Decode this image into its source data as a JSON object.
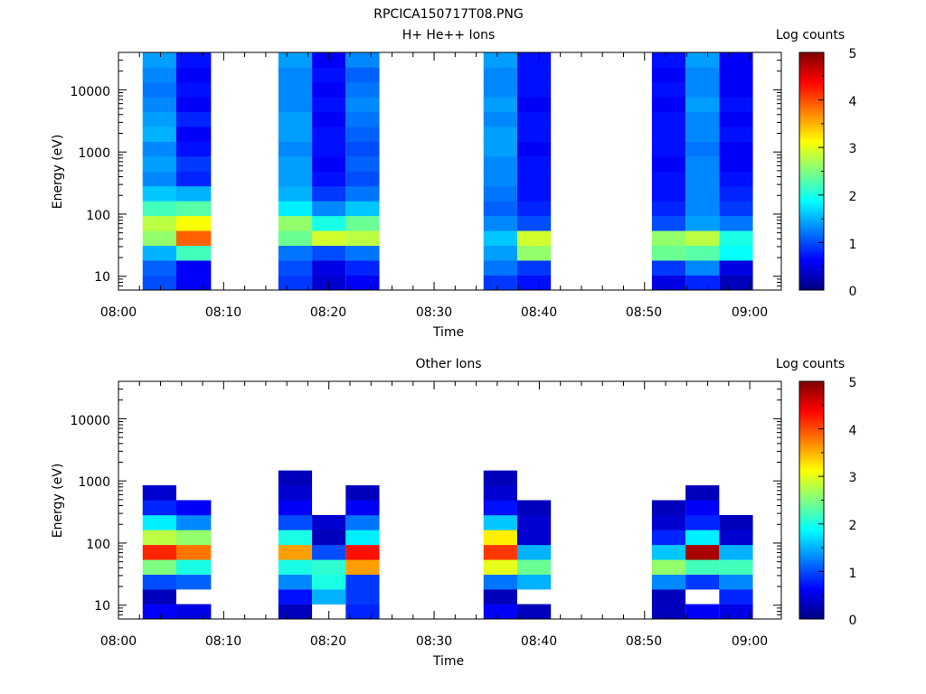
{
  "figure_title": "RPCICA150717T08.PNG",
  "colorbar": {
    "label": "Log counts",
    "ticks": [
      "0",
      "1",
      "2",
      "3",
      "4",
      "5"
    ],
    "stops": [
      "#00007f",
      "#0000ff",
      "#007fff",
      "#00ffff",
      "#7fff7f",
      "#ffff00",
      "#ff7f00",
      "#ff0000",
      "#7f0000"
    ]
  },
  "chart_data": [
    {
      "type": "heatmap",
      "title": "H+ He++ Ions",
      "xlabel": "Time",
      "ylabel": "Energy (eV)",
      "x_tick_labels": [
        "08:00",
        "08:10",
        "08:20",
        "08:30",
        "08:40",
        "08:50",
        "09:00"
      ],
      "y_tick_labels": [
        "10",
        "100",
        "1000",
        "10000"
      ],
      "y_scale": "log",
      "ylim": [
        6,
        40000
      ],
      "xlim_minutes_after_0800": [
        0,
        63
      ],
      "z_label": "Log counts",
      "z_range": [
        0,
        5
      ],
      "time_blocks_minutes": [
        [
          2.3,
          5.5
        ],
        [
          5.5,
          8.8
        ],
        [
          15.2,
          18.4
        ],
        [
          18.4,
          21.6
        ],
        [
          21.6,
          24.8
        ],
        [
          34.7,
          37.9
        ],
        [
          37.9,
          41.1
        ],
        [
          50.7,
          53.9
        ],
        [
          53.9,
          57.1
        ],
        [
          57.1,
          60.3
        ]
      ],
      "spectra": [
        [
          1.0,
          1.1,
          1.5,
          2.6,
          2.8,
          2.2,
          1.6,
          1.3,
          1.4,
          1.3,
          1.5,
          1.4,
          1.3,
          1.2,
          1.3,
          1.4
        ],
        [
          0.6,
          0.6,
          2.2,
          3.9,
          3.1,
          2.3,
          1.5,
          0.8,
          0.9,
          0.7,
          0.6,
          0.8,
          0.6,
          0.7,
          0.6,
          0.7
        ],
        [
          0.9,
          1.0,
          1.2,
          2.4,
          2.6,
          1.8,
          1.5,
          1.4,
          1.4,
          1.3,
          1.4,
          1.4,
          1.3,
          1.3,
          1.3,
          1.4
        ],
        [
          0.4,
          0.5,
          1.0,
          2.9,
          2.0,
          1.3,
          0.9,
          0.7,
          0.6,
          0.7,
          0.7,
          0.6,
          0.7,
          0.6,
          0.7,
          0.6
        ],
        [
          0.6,
          0.8,
          1.2,
          2.8,
          2.4,
          1.6,
          1.2,
          1.0,
          1.1,
          1.0,
          1.1,
          1.2,
          1.3,
          1.2,
          1.1,
          1.3
        ],
        [
          0.9,
          1.2,
          1.4,
          1.6,
          1.3,
          1.1,
          1.2,
          1.3,
          1.3,
          1.4,
          1.4,
          1.3,
          1.4,
          1.3,
          1.3,
          1.4
        ],
        [
          0.7,
          0.9,
          2.6,
          2.9,
          1.0,
          0.8,
          0.7,
          0.7,
          0.7,
          0.6,
          0.7,
          0.7,
          0.6,
          0.7,
          0.7,
          0.7
        ],
        [
          0.5,
          0.9,
          2.4,
          2.6,
          1.0,
          0.8,
          0.7,
          0.7,
          0.6,
          0.7,
          0.7,
          0.7,
          0.6,
          0.7,
          0.6,
          0.7
        ],
        [
          0.8,
          1.3,
          2.3,
          2.8,
          1.4,
          1.3,
          1.3,
          1.3,
          1.3,
          1.2,
          1.3,
          1.3,
          1.4,
          1.3,
          1.3,
          1.4
        ],
        [
          0.3,
          0.5,
          1.9,
          2.0,
          1.2,
          0.9,
          0.8,
          0.7,
          0.6,
          0.6,
          0.7,
          0.6,
          0.7,
          0.6,
          0.6,
          0.6
        ]
      ]
    },
    {
      "type": "heatmap",
      "title": "Other Ions",
      "xlabel": "Time",
      "ylabel": "Energy (eV)",
      "x_tick_labels": [
        "08:00",
        "08:10",
        "08:20",
        "08:30",
        "08:40",
        "08:50",
        "09:00"
      ],
      "y_tick_labels": [
        "10",
        "100",
        "1000",
        "10000"
      ],
      "y_scale": "log",
      "ylim": [
        6,
        40000
      ],
      "xlim_minutes_after_0800": [
        0,
        63
      ],
      "z_label": "Log counts",
      "z_range": [
        0,
        5
      ],
      "time_blocks_minutes": [
        [
          2.3,
          5.5
        ],
        [
          5.5,
          8.8
        ],
        [
          15.2,
          18.4
        ],
        [
          18.4,
          21.6
        ],
        [
          21.6,
          24.8
        ],
        [
          34.7,
          37.9
        ],
        [
          37.9,
          41.1
        ],
        [
          50.7,
          53.9
        ],
        [
          53.9,
          57.1
        ],
        [
          57.1,
          60.3
        ]
      ],
      "spectra": [
        [
          0.6,
          0.3,
          1.0,
          2.5,
          4.2,
          2.8,
          1.8,
          0.8,
          0.4,
          null,
          null,
          null,
          null,
          null,
          null,
          null
        ],
        [
          0.5,
          null,
          1.1,
          2.0,
          3.8,
          2.6,
          1.3,
          0.6,
          null,
          null,
          null,
          null,
          null,
          null,
          null,
          null
        ],
        [
          0.3,
          0.7,
          1.3,
          2.0,
          3.6,
          2.0,
          1.0,
          0.6,
          0.4,
          0.3,
          null,
          null,
          null,
          null,
          null,
          null
        ],
        [
          null,
          1.5,
          2.0,
          2.1,
          1.0,
          0.3,
          0.4,
          null,
          null,
          null,
          null,
          null,
          null,
          null,
          null,
          null
        ],
        [
          0.8,
          0.9,
          0.9,
          3.6,
          4.3,
          1.8,
          1.2,
          0.6,
          0.3,
          null,
          null,
          null,
          null,
          null,
          null,
          null
        ],
        [
          0.6,
          0.3,
          1.2,
          3.0,
          4.1,
          3.2,
          1.6,
          0.7,
          0.4,
          0.3,
          null,
          null,
          null,
          null,
          null,
          null
        ],
        [
          0.3,
          null,
          1.5,
          2.4,
          1.5,
          0.4,
          0.4,
          0.3,
          null,
          null,
          null,
          null,
          null,
          null,
          null,
          null
        ],
        [
          0.3,
          0.3,
          1.3,
          2.6,
          1.6,
          0.8,
          0.4,
          0.3,
          null,
          null,
          null,
          null,
          null,
          null,
          null,
          null
        ],
        [
          0.6,
          null,
          0.9,
          2.2,
          4.8,
          1.8,
          0.8,
          0.6,
          0.3,
          null,
          null,
          null,
          null,
          null,
          null,
          null
        ],
        [
          0.5,
          0.8,
          1.3,
          2.2,
          1.5,
          0.4,
          0.3,
          null,
          null,
          null,
          null,
          null,
          null,
          null,
          null,
          null
        ]
      ]
    }
  ]
}
